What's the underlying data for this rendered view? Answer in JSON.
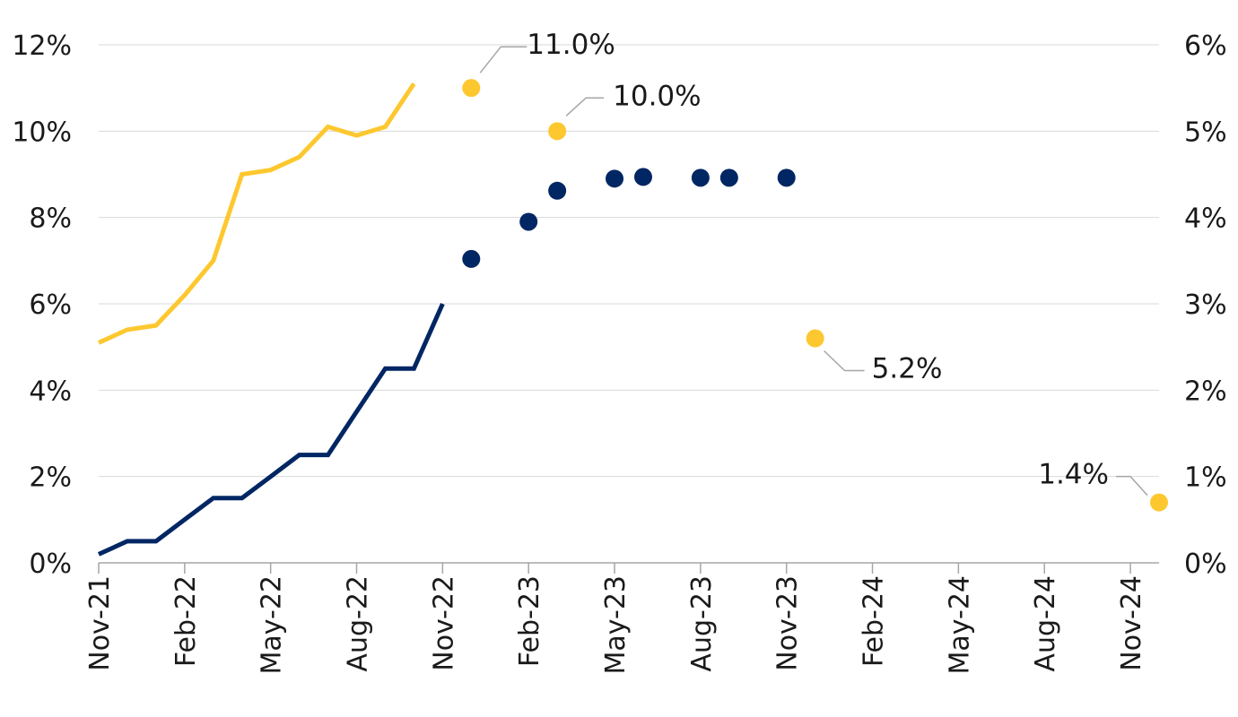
{
  "chart_data": {
    "type": "line",
    "x_tick_labels": [
      "Nov-21",
      "Feb-22",
      "May-22",
      "Aug-22",
      "Nov-22",
      "Feb-23",
      "May-23",
      "Aug-23",
      "Nov-23",
      "Feb-24",
      "May-24",
      "Aug-24",
      "Nov-24"
    ],
    "x_tick_dates": [
      "2021-11",
      "2022-02",
      "2022-05",
      "2022-08",
      "2022-11",
      "2023-02",
      "2023-05",
      "2023-08",
      "2023-11",
      "2024-02",
      "2024-05",
      "2024-08",
      "2024-11"
    ],
    "xlim": [
      "2021-11",
      "2024-12"
    ],
    "y_left": {
      "ticks": [
        "0%",
        "2%",
        "4%",
        "6%",
        "8%",
        "10%",
        "12%"
      ],
      "values": [
        0,
        2,
        4,
        6,
        8,
        10,
        12
      ],
      "ylim": [
        0,
        12
      ]
    },
    "y_right": {
      "ticks": [
        "0%",
        "1%",
        "2%",
        "3%",
        "4%",
        "5%",
        "6%"
      ],
      "values": [
        0,
        1,
        2,
        3,
        4,
        5,
        6
      ],
      "ylim": [
        0,
        6
      ]
    },
    "grid": true,
    "series": [
      {
        "axis": "left",
        "color": "#fdc82f",
        "line": {
          "x": [
            "2021-11",
            "2021-12",
            "2022-01",
            "2022-02",
            "2022-03",
            "2022-04",
            "2022-05",
            "2022-06",
            "2022-07",
            "2022-08",
            "2022-09",
            "2022-10"
          ],
          "y": [
            5.1,
            5.4,
            5.5,
            6.2,
            7.0,
            9.0,
            9.1,
            9.4,
            10.1,
            9.9,
            10.1,
            11.1
          ]
        },
        "points": [
          {
            "x": "2022-12",
            "y": 11.0,
            "label": "11.0%"
          },
          {
            "x": "2023-03",
            "y": 10.0,
            "label": "10.0%"
          },
          {
            "x": "2023-12",
            "y": 5.2,
            "label": "5.2%"
          },
          {
            "x": "2024-12",
            "y": 1.4,
            "label": "1.4%"
          }
        ]
      },
      {
        "axis": "right",
        "color": "#002663",
        "line": {
          "x": [
            "2021-11",
            "2021-12",
            "2022-01",
            "2022-02",
            "2022-03",
            "2022-04",
            "2022-05",
            "2022-06",
            "2022-07",
            "2022-08",
            "2022-09",
            "2022-10",
            "2022-11"
          ],
          "y": [
            0.1,
            0.25,
            0.25,
            0.5,
            0.75,
            0.75,
            1.0,
            1.25,
            1.25,
            1.75,
            2.25,
            2.25,
            3.0
          ]
        },
        "points": [
          {
            "x": "2022-12",
            "y": 3.52
          },
          {
            "x": "2023-02",
            "y": 3.95
          },
          {
            "x": "2023-03",
            "y": 4.31
          },
          {
            "x": "2023-05",
            "y": 4.45
          },
          {
            "x": "2023-06",
            "y": 4.47
          },
          {
            "x": "2023-08",
            "y": 4.46
          },
          {
            "x": "2023-09",
            "y": 4.46
          },
          {
            "x": "2023-11",
            "y": 4.46
          }
        ]
      }
    ]
  }
}
